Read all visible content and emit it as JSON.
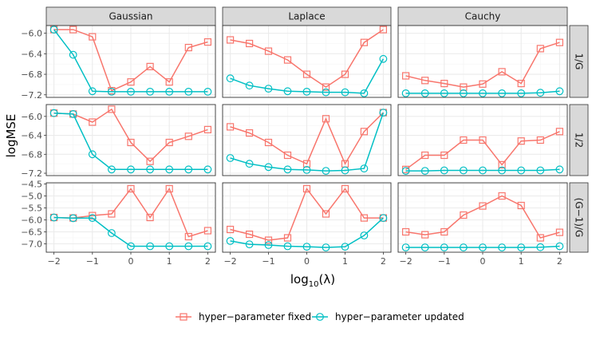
{
  "chart_data": {
    "type": "line",
    "facet_columns": [
      "Gaussian",
      "Laplace",
      "Cauchy"
    ],
    "facet_rows": [
      "1/G",
      "1/2",
      "(G−1)/G"
    ],
    "xlabel": "log",
    "xlabel_subscript": "10",
    "xlabel_suffix": "(λ)",
    "ylabel": "logMSE",
    "x": [
      -2,
      -1.5,
      -1,
      -0.5,
      0,
      0.5,
      1,
      1.5,
      2
    ],
    "xticks": [
      -2,
      -1,
      0,
      1,
      2
    ],
    "xtick_labels": [
      "−2",
      "−1",
      "0",
      "1",
      "2"
    ],
    "xlim": [
      -2.2,
      2.2
    ],
    "row_axes": [
      {
        "ylim": [
          -7.25,
          -5.85
        ],
        "yticks": [
          -6.0,
          -6.4,
          -6.8,
          -7.2
        ],
        "ytick_labels": [
          "−6.0",
          "−6.4",
          "−6.8",
          "−7.2"
        ]
      },
      {
        "ylim": [
          -7.25,
          -5.75
        ],
        "yticks": [
          -6.0,
          -6.4,
          -6.8,
          -7.2
        ],
        "ytick_labels": [
          "−6.0",
          "−6.4",
          "−6.8",
          "−7.2"
        ]
      },
      {
        "ylim": [
          -7.35,
          -4.45
        ],
        "yticks": [
          -4.5,
          -5.0,
          -5.5,
          -6.0,
          -6.5,
          -7.0
        ],
        "ytick_labels": [
          "−4.5",
          "−5.0",
          "−5.5",
          "−6.0",
          "−6.5",
          "−7.0"
        ]
      }
    ],
    "series": [
      {
        "name": "hyper−parameter fixed",
        "color": "#f8766d",
        "marker": "square"
      },
      {
        "name": "hyper−parameter updated",
        "color": "#00bfc4",
        "marker": "circle"
      }
    ],
    "panels": [
      {
        "row": 0,
        "col": 0,
        "fixed": [
          -5.93,
          -5.93,
          -6.07,
          -7.12,
          -6.95,
          -6.65,
          -6.95,
          -6.28,
          -6.17
        ],
        "updated": [
          -5.93,
          -6.42,
          -7.13,
          -7.14,
          -7.14,
          -7.14,
          -7.14,
          -7.14,
          -7.14
        ]
      },
      {
        "row": 0,
        "col": 1,
        "fixed": [
          -6.13,
          -6.2,
          -6.35,
          -6.52,
          -6.8,
          -7.05,
          -6.8,
          -6.18,
          -5.93
        ],
        "updated": [
          -6.88,
          -7.02,
          -7.08,
          -7.13,
          -7.14,
          -7.15,
          -7.15,
          -7.17,
          -6.5
        ]
      },
      {
        "row": 0,
        "col": 2,
        "fixed": [
          -6.83,
          -6.92,
          -6.98,
          -7.05,
          -6.99,
          -6.75,
          -6.98,
          -6.3,
          -6.18
        ],
        "updated": [
          -7.17,
          -7.17,
          -7.17,
          -7.17,
          -7.17,
          -7.17,
          -7.17,
          -7.16,
          -7.13
        ]
      },
      {
        "row": 1,
        "col": 0,
        "fixed": [
          -5.93,
          -5.95,
          -6.12,
          -5.85,
          -6.55,
          -6.95,
          -6.55,
          -6.42,
          -6.28
        ],
        "updated": [
          -5.93,
          -5.95,
          -6.8,
          -7.12,
          -7.12,
          -7.12,
          -7.12,
          -7.12,
          -7.12
        ]
      },
      {
        "row": 1,
        "col": 1,
        "fixed": [
          -6.22,
          -6.35,
          -6.55,
          -6.82,
          -7.0,
          -6.05,
          -7.0,
          -6.32,
          -5.92
        ],
        "updated": [
          -6.88,
          -7.0,
          -7.07,
          -7.12,
          -7.13,
          -7.15,
          -7.14,
          -7.1,
          -5.92
        ]
      },
      {
        "row": 1,
        "col": 2,
        "fixed": [
          -7.12,
          -6.82,
          -6.82,
          -6.5,
          -6.5,
          -7.02,
          -6.52,
          -6.5,
          -6.32
        ],
        "updated": [
          -7.15,
          -7.15,
          -7.14,
          -7.14,
          -7.14,
          -7.14,
          -7.14,
          -7.14,
          -7.12
        ]
      },
      {
        "row": 2,
        "col": 0,
        "fixed": [
          -5.9,
          -5.92,
          -5.82,
          -5.75,
          -4.7,
          -5.9,
          -4.7,
          -6.7,
          -6.45
        ],
        "updated": [
          -5.9,
          -5.93,
          -5.92,
          -6.55,
          -7.1,
          -7.1,
          -7.1,
          -7.1,
          -7.1
        ]
      },
      {
        "row": 2,
        "col": 1,
        "fixed": [
          -6.4,
          -6.6,
          -6.85,
          -6.75,
          -4.7,
          -5.75,
          -4.7,
          -5.92,
          -5.92
        ],
        "updated": [
          -6.88,
          -7.02,
          -7.05,
          -7.1,
          -7.12,
          -7.15,
          -7.12,
          -6.65,
          -5.92
        ]
      },
      {
        "row": 2,
        "col": 2,
        "fixed": [
          -6.5,
          -6.62,
          -6.5,
          -5.8,
          -5.42,
          -5.0,
          -5.4,
          -6.75,
          -6.52
        ],
        "updated": [
          -7.15,
          -7.15,
          -7.15,
          -7.15,
          -7.15,
          -7.15,
          -7.15,
          -7.14,
          -7.1
        ]
      }
    ]
  }
}
